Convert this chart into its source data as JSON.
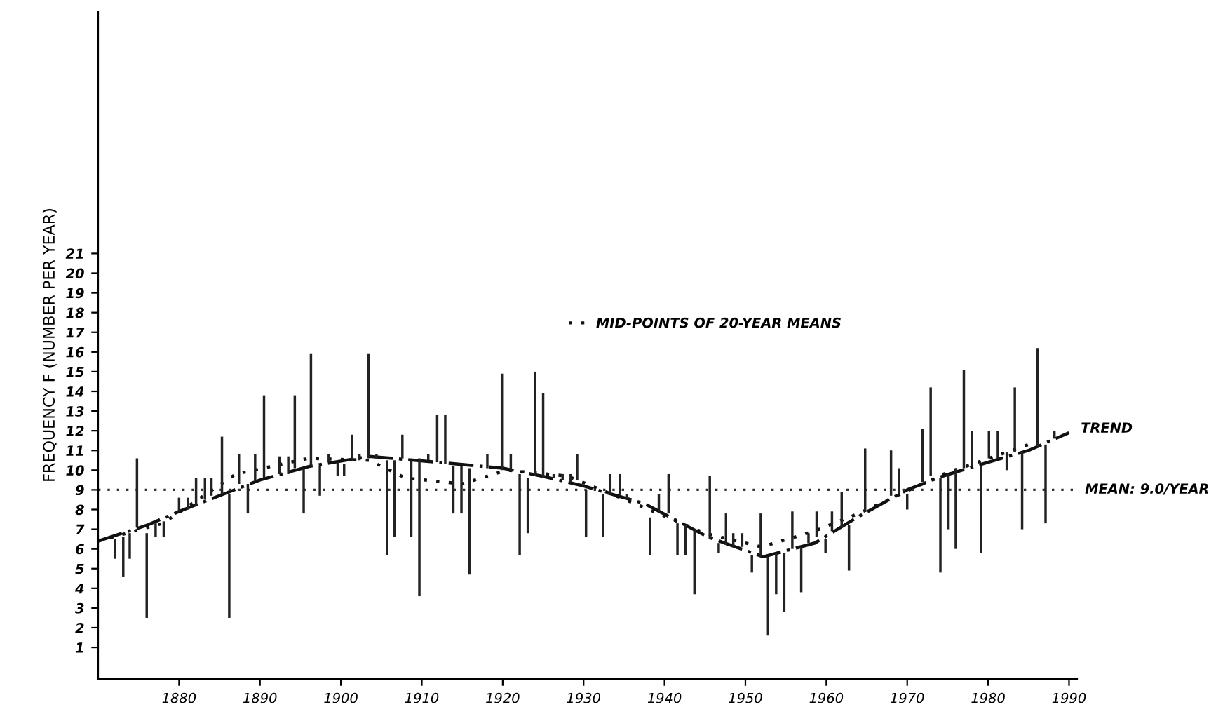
{
  "chart_data": {
    "type": "line",
    "ylabel": "FREQUENCY F (NUMBER PER YEAR)",
    "xlim": [
      1870,
      1991
    ],
    "ylim": [
      -0.6,
      33.3
    ],
    "xticks": [
      1880,
      1890,
      1900,
      1910,
      1920,
      1930,
      1940,
      1950,
      1960,
      1970,
      1980,
      1990
    ],
    "yticks": [
      1,
      2,
      3,
      4,
      5,
      6,
      7,
      8,
      9,
      10,
      11,
      12,
      13,
      14,
      15,
      16,
      17,
      18,
      19,
      20,
      21
    ],
    "grid": false,
    "legend": "top",
    "annotations": [
      {
        "text": "TREND",
        "x": 1990,
        "y": 11.9
      }
    ],
    "ref_lines": [
      {
        "axis": "y",
        "value": 9.0,
        "label": "MEAN: 9.0/YEAR",
        "color": "#333333",
        "line_style": "dotted"
      }
    ],
    "series": [
      {
        "type": "bar",
        "color": "#222222",
        "x": [
          1872.1,
          1873.1,
          1873.9,
          1874.8,
          1876.0,
          1877.1,
          1878.1,
          1880.0,
          1881.1,
          1882.1,
          1883.2,
          1884.0,
          1885.3,
          1886.2,
          1887.4,
          1888.5,
          1889.4,
          1890.5,
          1892.4,
          1893.5,
          1894.3,
          1895.4,
          1896.3,
          1897.4,
          1898.5,
          1899.6,
          1900.4,
          1901.4,
          1902.3,
          1903.4,
          1904.4,
          1905.7,
          1906.6,
          1907.6,
          1908.7,
          1909.7,
          1910.8,
          1911.9,
          1912.9,
          1913.9,
          1914.9,
          1915.9,
          1918.1,
          1919.9,
          1921.0,
          1922.1,
          1923.1,
          1924.0,
          1925.0,
          1926.3,
          1927.4,
          1928.4,
          1929.2,
          1930.3,
          1932.4,
          1933.3,
          1934.5,
          1935.3,
          1938.2,
          1939.3,
          1940.5,
          1941.6,
          1942.6,
          1943.7,
          1945.6,
          1946.7,
          1947.6,
          1948.5,
          1949.6,
          1950.8,
          1951.9,
          1952.8,
          1953.8,
          1954.8,
          1955.8,
          1956.9,
          1957.8,
          1958.8,
          1959.9,
          1960.7,
          1961.9,
          1962.8,
          1964.8,
          1968.0,
          1969.0,
          1970.0,
          1971.9,
          1972.9,
          1974.1,
          1975.1,
          1976.0,
          1977.0,
          1978.0,
          1979.1,
          1980.1,
          1981.2,
          1982.3,
          1983.3,
          1984.2,
          1986.1,
          1987.1,
          1988.2
        ],
        "base": [
          5.5,
          4.6,
          5.5,
          7.1,
          2.5,
          6.6,
          6.6,
          7.9,
          8.0,
          8.2,
          8.5,
          8.7,
          8.8,
          2.5,
          9.3,
          7.8,
          9.5,
          9.6,
          9.8,
          9.8,
          10.1,
          7.8,
          10.2,
          8.7,
          10.4,
          9.7,
          9.7,
          10.5,
          10.5,
          10.6,
          10.6,
          5.7,
          6.6,
          10.6,
          6.6,
          3.6,
          10.5,
          10.4,
          10.3,
          7.8,
          7.8,
          4.7,
          10.1,
          10.0,
          10.0,
          5.7,
          6.8,
          9.7,
          9.6,
          9.6,
          9.5,
          9.4,
          9.5,
          6.6,
          6.6,
          8.8,
          8.7,
          8.5,
          5.7,
          7.9,
          7.8,
          5.7,
          5.7,
          3.7,
          6.5,
          5.8,
          6.2,
          6.1,
          6.1,
          4.8,
          5.6,
          1.6,
          3.7,
          2.8,
          6.0,
          3.8,
          6.3,
          6.6,
          5.8,
          6.9,
          7.1,
          4.9,
          7.9,
          8.7,
          8.8,
          8.0,
          9.4,
          9.7,
          4.8,
          7.0,
          6.0,
          10.1,
          10.2,
          5.8,
          10.6,
          10.6,
          10.0,
          10.9,
          7.0,
          11.2,
          7.3,
          11.6
        ],
        "values": [
          1.0,
          2.0,
          1.3,
          3.5,
          4.3,
          0.7,
          0.8,
          0.7,
          0.6,
          1.4,
          1.1,
          0.9,
          2.9,
          6.3,
          1.5,
          1.5,
          1.3,
          4.2,
          0.9,
          0.9,
          3.7,
          2.3,
          5.7,
          1.5,
          0.4,
          0.7,
          0.6,
          1.3,
          0.3,
          5.3,
          0.2,
          4.8,
          3.9,
          1.2,
          3.9,
          7.0,
          0.3,
          2.4,
          2.5,
          2.4,
          2.4,
          5.4,
          0.7,
          4.9,
          0.8,
          4.1,
          2.8,
          5.3,
          4.3,
          0.2,
          0.3,
          0.4,
          1.3,
          2.4,
          2.2,
          1.0,
          1.1,
          0.3,
          1.9,
          0.9,
          2.0,
          1.6,
          1.5,
          3.3,
          3.2,
          0.5,
          1.6,
          0.7,
          0.7,
          0.9,
          2.2,
          4.0,
          2.1,
          3.0,
          1.9,
          2.3,
          0.5,
          1.3,
          0.7,
          1.0,
          1.8,
          2.3,
          3.2,
          2.3,
          1.3,
          0.8,
          2.7,
          4.5,
          4.8,
          2.8,
          4.1,
          5.0,
          1.8,
          4.4,
          1.4,
          1.4,
          0.9,
          3.3,
          3.9,
          5.0,
          4.0,
          0.4
        ]
      },
      {
        "color": "#111111",
        "line_style": "dashed",
        "x": [
          1870,
          1876,
          1880,
          1885.6,
          1890,
          1896.2,
          1903.5,
          1912,
          1920,
          1924.8,
          1930,
          1937.5,
          1945.4,
          1952.2,
          1958.6,
          1963.8,
          1970,
          1974.4,
          1980,
          1985,
          1990
        ],
        "values": [
          6.4,
          7.2,
          7.9,
          8.8,
          9.5,
          10.2,
          10.7,
          10.4,
          10.1,
          9.7,
          9.2,
          8.3,
          6.6,
          5.6,
          6.3,
          7.6,
          9.0,
          9.7,
          10.4,
          11.0,
          11.9
        ]
      },
      {
        "name": "MID-POINTS OF 20-YEAR MEANS",
        "color": "#111111",
        "line_style": "dotted",
        "x": [
          1870,
          1878,
          1887,
          1896,
          1903.5,
          1908,
          1915,
          1920.5,
          1928,
          1937.5,
          1945,
          1952,
          1958.5,
          1964,
          1974.5,
          1985
        ],
        "values": [
          6.4,
          7.3,
          9.8,
          10.6,
          10.5,
          9.6,
          9.3,
          10.0,
          9.7,
          8.1,
          6.8,
          6.1,
          6.9,
          7.8,
          9.8,
          11.3
        ]
      }
    ]
  }
}
